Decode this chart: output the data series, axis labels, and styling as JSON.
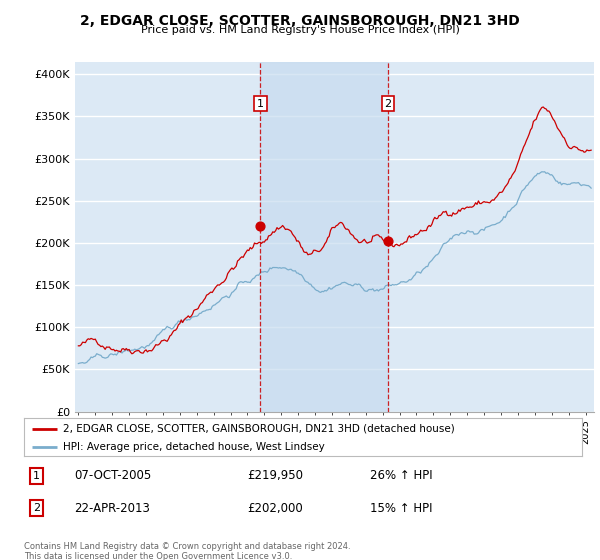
{
  "title": "2, EDGAR CLOSE, SCOTTER, GAINSBOROUGH, DN21 3HD",
  "subtitle": "Price paid vs. HM Land Registry's House Price Index (HPI)",
  "ylabel_ticks": [
    "£0",
    "£50K",
    "£100K",
    "£150K",
    "£200K",
    "£250K",
    "£300K",
    "£350K",
    "£400K"
  ],
  "ytick_values": [
    0,
    50000,
    100000,
    150000,
    200000,
    250000,
    300000,
    350000,
    400000
  ],
  "ylim": [
    0,
    415000
  ],
  "xlim_start": 1994.8,
  "xlim_end": 2025.5,
  "background_color": "#dce9f5",
  "shade_color": "#c8dcf0",
  "grid_color": "#ffffff",
  "red_line_color": "#cc0000",
  "blue_line_color": "#7aadcc",
  "transaction1_x": 2005.77,
  "transaction1_y": 219950,
  "transaction1_label": "1",
  "transaction2_x": 2013.31,
  "transaction2_y": 202000,
  "transaction2_label": "2",
  "legend_red_label": "2, EDGAR CLOSE, SCOTTER, GAINSBOROUGH, DN21 3HD (detached house)",
  "legend_blue_label": "HPI: Average price, detached house, West Lindsey",
  "note1_label": "1",
  "note1_date": "07-OCT-2005",
  "note1_price": "£219,950",
  "note1_hpi": "26% ↑ HPI",
  "note2_label": "2",
  "note2_date": "22-APR-2013",
  "note2_price": "£202,000",
  "note2_hpi": "15% ↑ HPI",
  "footer": "Contains HM Land Registry data © Crown copyright and database right 2024.\nThis data is licensed under the Open Government Licence v3.0."
}
